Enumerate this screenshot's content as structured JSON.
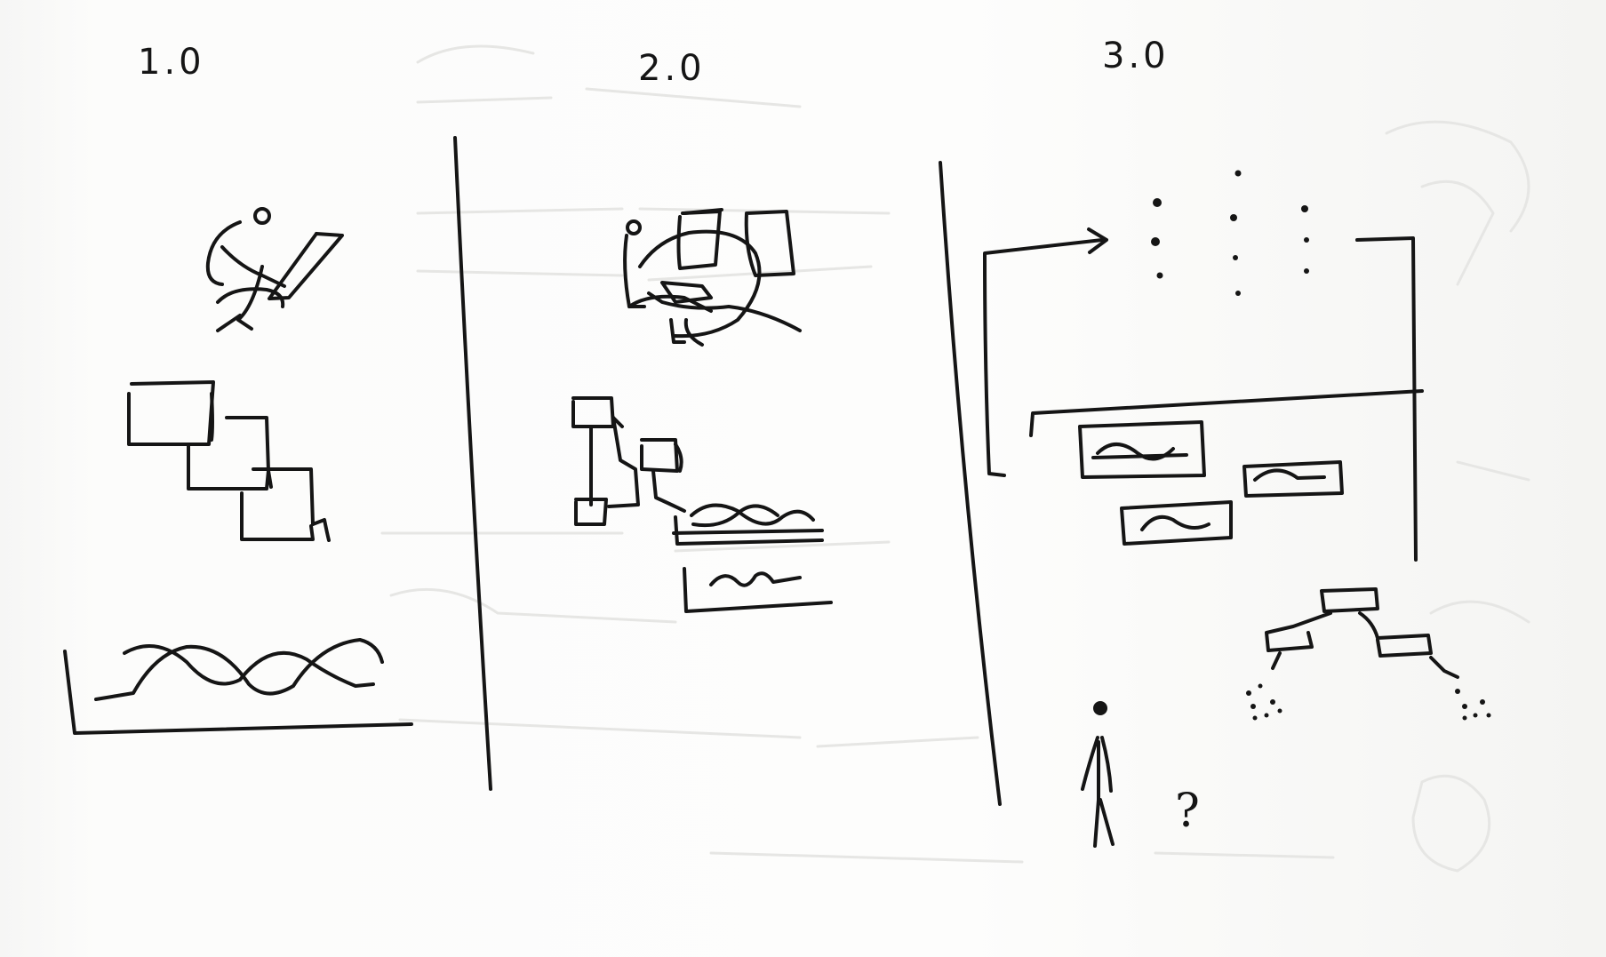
{
  "panels": [
    {
      "label": "1.0"
    },
    {
      "label": "2.0"
    },
    {
      "label": "3.0"
    }
  ],
  "annotation": {
    "question_mark": "?"
  },
  "colors": {
    "ink": "#151515",
    "paper": "#fbfbfa",
    "bleed_through": "#e6e6e4"
  }
}
